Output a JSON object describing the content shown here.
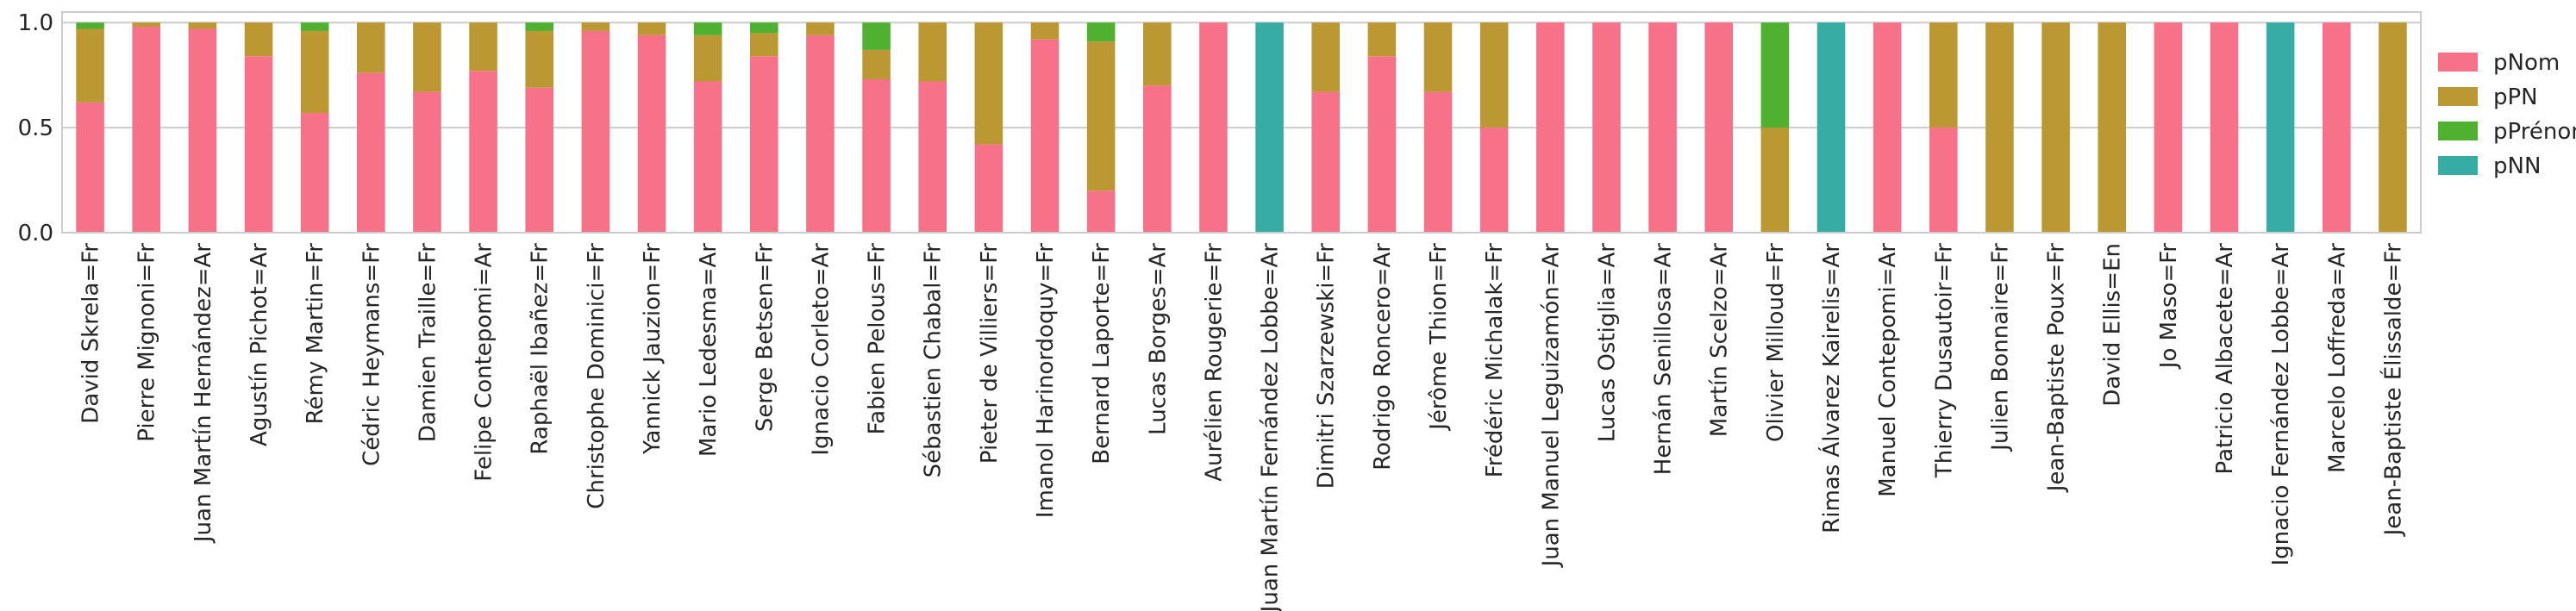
{
  "chart_data": {
    "type": "bar",
    "stacked": true,
    "categories": [
      "David Skrela=Fr",
      "Pierre Mignoni=Fr",
      "Juan Martín Hernández=Ar",
      "Agustín Pichot=Ar",
      "Rémy Martin=Fr",
      "Cédric Heymans=Fr",
      "Damien Traille=Fr",
      "Felipe Contepomi=Ar",
      "Raphaël Ibañez=Fr",
      "Christophe Dominici=Fr",
      "Yannick Jauzion=Fr",
      "Mario Ledesma=Ar",
      "Serge Betsen=Fr",
      "Ignacio Corleto=Ar",
      "Fabien Pelous=Fr",
      "Sébastien Chabal=Fr",
      "Pieter de Villiers=Fr",
      "Imanol Harinordoquy=Fr",
      "Bernard Laporte=Fr",
      "Lucas Borges=Ar",
      "Aurélien Rougerie=Fr",
      "Juan Martín Fernández Lobbe=Ar",
      "Dimitri Szarzewski=Fr",
      "Rodrigo Roncero=Ar",
      "Jérôme Thion=Fr",
      "Frédéric Michalak=Fr",
      "Juan Manuel Leguizamón=Ar",
      "Lucas Ostiglia=Ar",
      "Hernán Senillosa=Ar",
      "Martín Scelzo=Ar",
      "Olivier Milloud=Fr",
      "Rimas Álvarez Kairelis=Ar",
      "Manuel Contepomi=Ar",
      "Thierry Dusautoir=Fr",
      "Julien Bonnaire=Fr",
      "Jean-Baptiste Poux=Fr",
      "David Ellis=En",
      "Jo Maso=Fr",
      "Patricio Albacete=Ar",
      "Ignacio Fernández Lobbe=Ar",
      "Marcelo Loffreda=Ar",
      "Jean-Baptiste Élissalde=Fr"
    ],
    "series": [
      {
        "name": "pNom",
        "color": "#f77189",
        "values": [
          0.62,
          0.98,
          0.97,
          0.84,
          0.57,
          0.76,
          0.67,
          0.77,
          0.69,
          0.96,
          0.94,
          0.72,
          0.84,
          0.94,
          0.73,
          0.72,
          0.42,
          0.92,
          0.2,
          0.7,
          1.0,
          0.0,
          0.67,
          0.84,
          0.67,
          0.5,
          1.0,
          1.0,
          1.0,
          1.0,
          0.0,
          0.0,
          1.0,
          0.5,
          0.0,
          0.0,
          0.0,
          1.0,
          1.0,
          0.0,
          1.0,
          0.0
        ]
      },
      {
        "name": "pPN",
        "color": "#bb9832",
        "values": [
          0.35,
          0.02,
          0.03,
          0.16,
          0.39,
          0.24,
          0.33,
          0.23,
          0.27,
          0.04,
          0.06,
          0.22,
          0.11,
          0.06,
          0.14,
          0.28,
          0.58,
          0.08,
          0.71,
          0.3,
          0.0,
          0.0,
          0.33,
          0.16,
          0.33,
          0.5,
          0.0,
          0.0,
          0.0,
          0.0,
          0.5,
          0.0,
          0.0,
          0.5,
          1.0,
          1.0,
          1.0,
          0.0,
          0.0,
          0.0,
          0.0,
          1.0
        ]
      },
      {
        "name": "pPrénom",
        "color": "#50b131",
        "values": [
          0.03,
          0.0,
          0.0,
          0.0,
          0.04,
          0.0,
          0.0,
          0.0,
          0.04,
          0.0,
          0.0,
          0.06,
          0.05,
          0.0,
          0.13,
          0.0,
          0.0,
          0.0,
          0.09,
          0.0,
          0.0,
          0.0,
          0.0,
          0.0,
          0.0,
          0.0,
          0.0,
          0.0,
          0.0,
          0.0,
          0.5,
          0.0,
          0.0,
          0.0,
          0.0,
          0.0,
          0.0,
          0.0,
          0.0,
          0.0,
          0.0,
          0.0
        ]
      },
      {
        "name": "pNN",
        "color": "#36ada4",
        "values": [
          0.0,
          0.0,
          0.0,
          0.0,
          0.0,
          0.0,
          0.0,
          0.0,
          0.0,
          0.0,
          0.0,
          0.0,
          0.0,
          0.0,
          0.0,
          0.0,
          0.0,
          0.0,
          0.0,
          0.0,
          0.0,
          1.0,
          0.0,
          0.0,
          0.0,
          0.0,
          0.0,
          0.0,
          0.0,
          0.0,
          0.0,
          1.0,
          0.0,
          0.0,
          0.0,
          0.0,
          0.0,
          0.0,
          0.0,
          1.0,
          0.0,
          0.0
        ]
      }
    ],
    "yticks": [
      "0.0",
      "0.5",
      "1.0"
    ],
    "ylim": [
      0,
      1.05
    ],
    "grid": true,
    "legend_position": "right"
  }
}
